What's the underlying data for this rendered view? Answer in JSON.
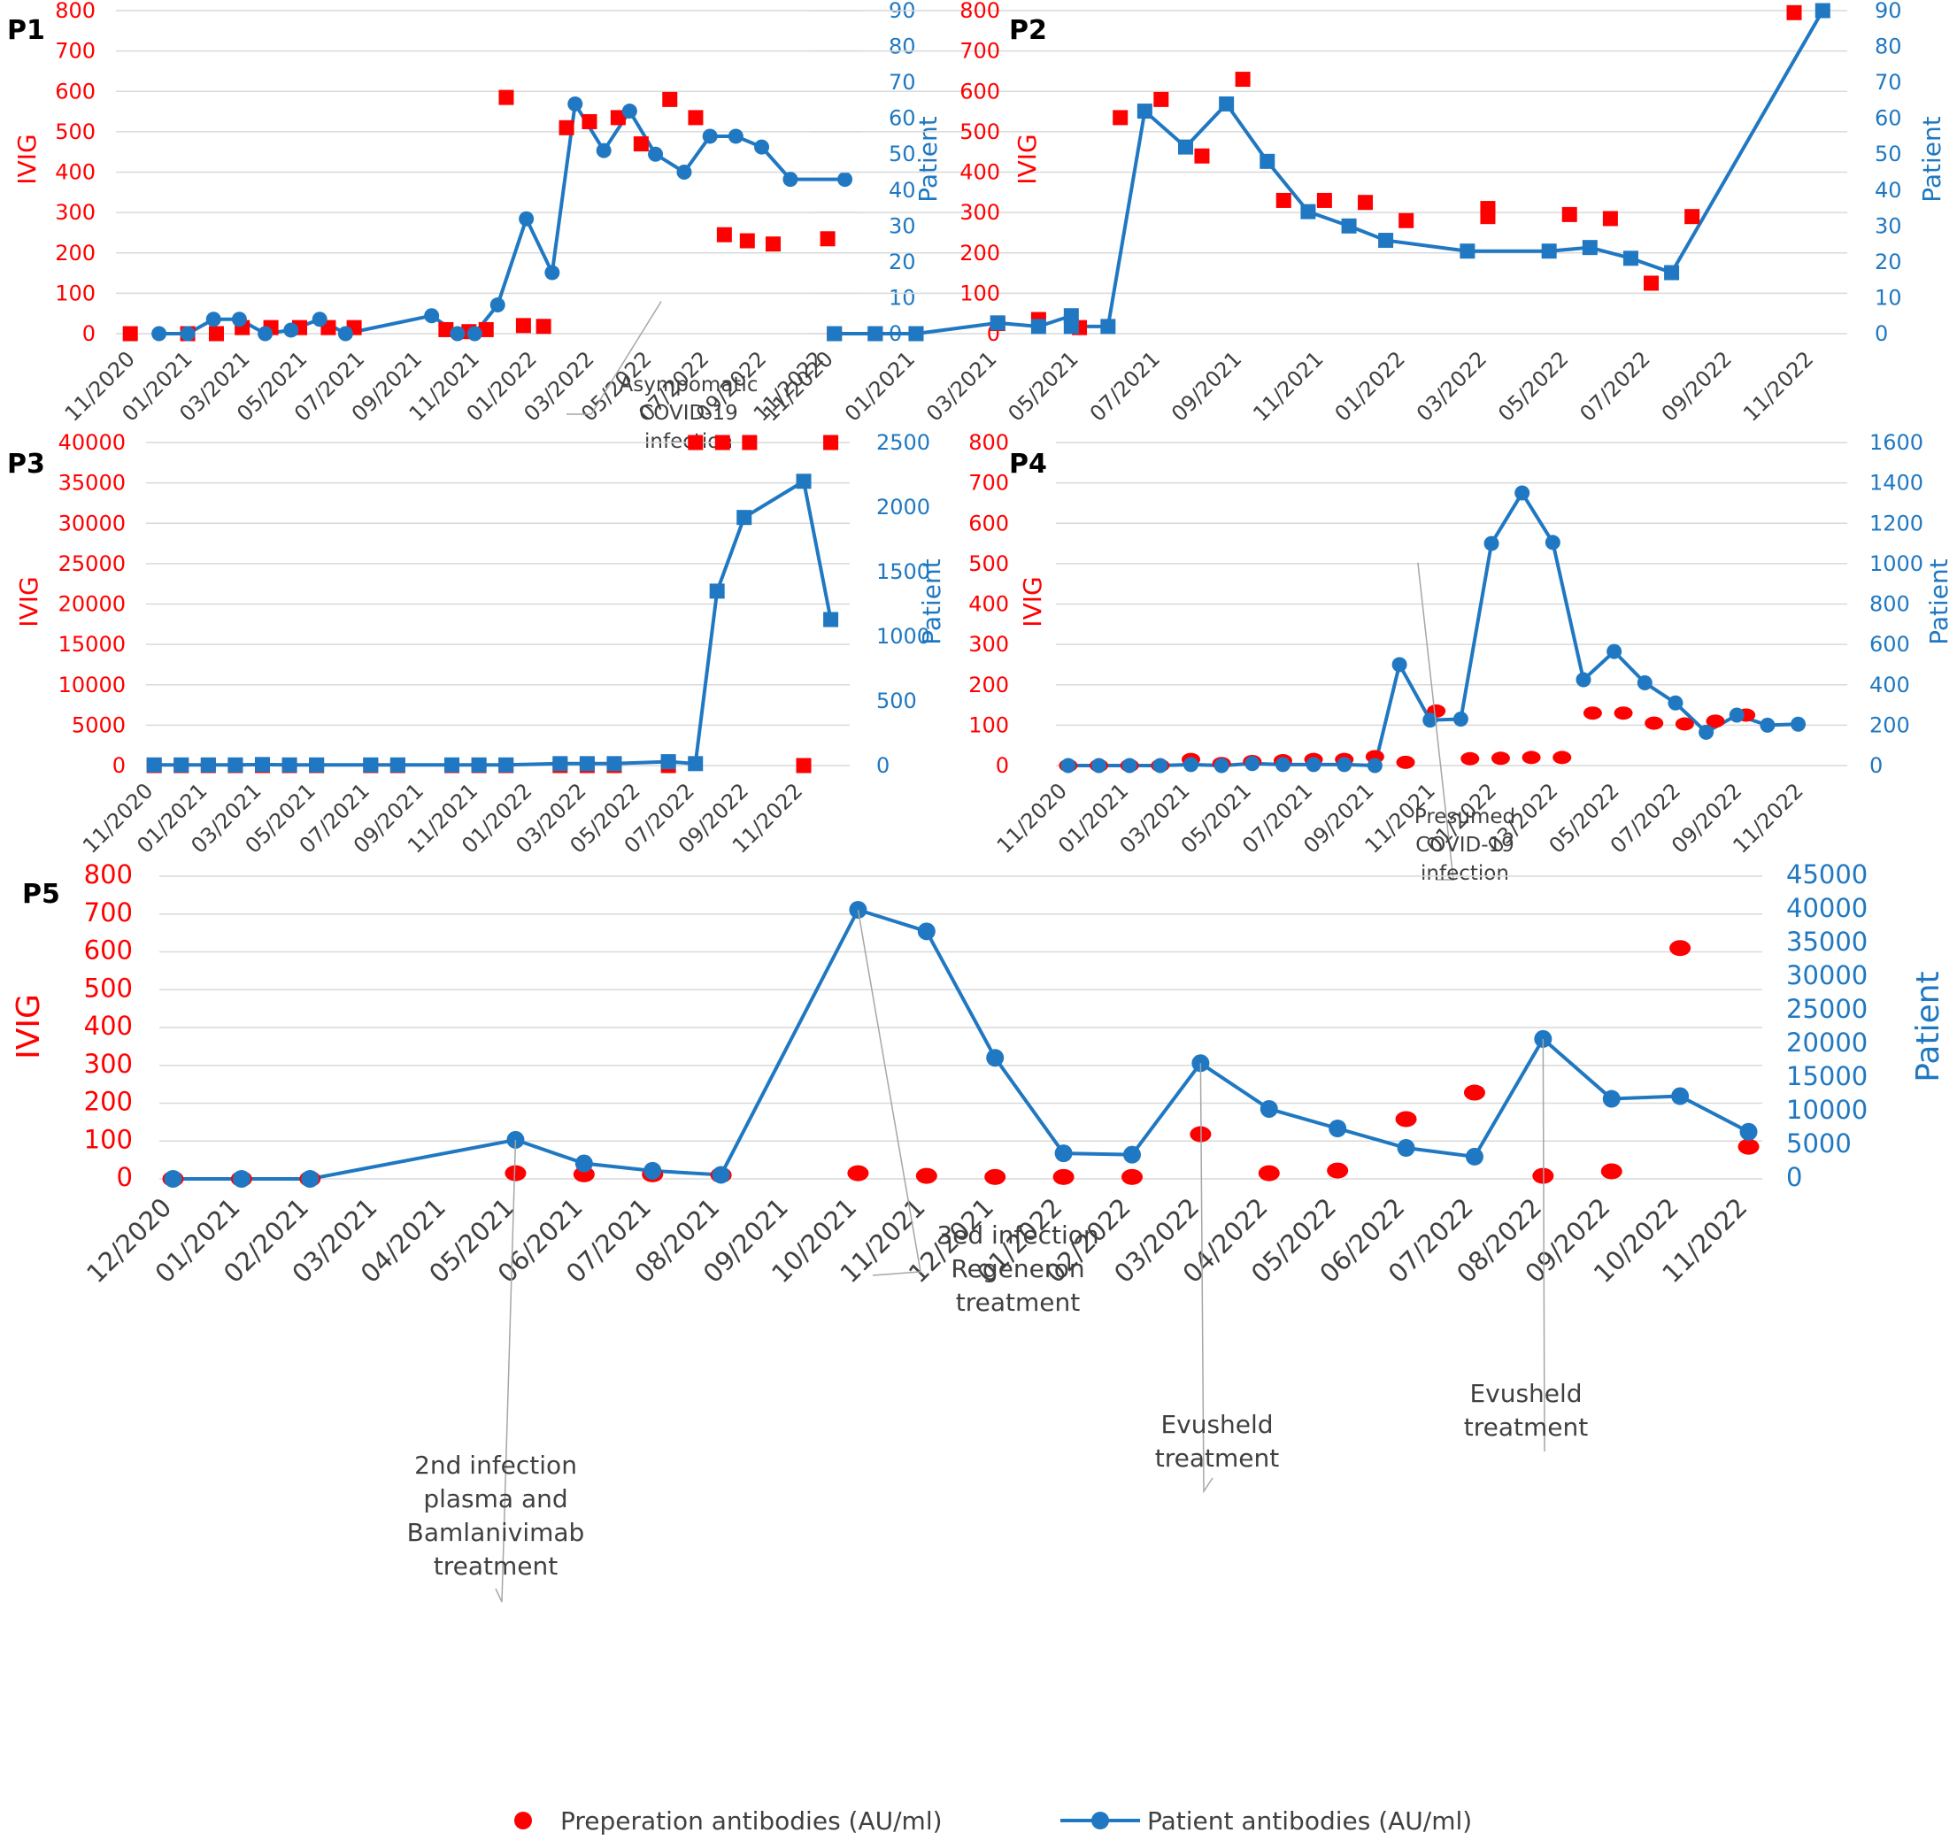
{
  "chart_data": [
    {
      "id": "P1",
      "type": "line+scatter",
      "panel_label": "P1",
      "ylabel_left": "IVIG",
      "ylabel_right": "Patient",
      "ylim_left": [
        0,
        800
      ],
      "yticks_left": [
        0,
        100,
        200,
        300,
        400,
        500,
        600,
        700,
        800
      ],
      "ylim_right": [
        0,
        90
      ],
      "yticks_right": [
        0,
        10,
        20,
        30,
        40,
        50,
        60,
        70,
        80,
        90
      ],
      "xlim": [
        -0.7,
        25.3
      ],
      "x_units": "months since 11/2020",
      "x_ticks": [
        0,
        2,
        4,
        6,
        8,
        10,
        12,
        14,
        16,
        18,
        20,
        22,
        24
      ],
      "x_tick_labels": [
        "11/2020",
        "01/2021",
        "03/2021",
        "05/2021",
        "07/2021",
        "09/2021",
        "11/2021",
        "01/2022",
        "03/2022",
        "05/2022",
        "07/2022",
        "09/2022",
        "11/2022"
      ],
      "ivig_marker": "square",
      "ivig_points": [
        [
          -0.2,
          0
        ],
        [
          1.8,
          0
        ],
        [
          2.8,
          0
        ],
        [
          3.7,
          15
        ],
        [
          4.7,
          15
        ],
        [
          5.7,
          15
        ],
        [
          6.7,
          15
        ],
        [
          7.6,
          15
        ],
        [
          10.8,
          10
        ],
        [
          11.6,
          5
        ],
        [
          12.2,
          10
        ],
        [
          12.9,
          585
        ],
        [
          13.5,
          20
        ],
        [
          14.2,
          18
        ],
        [
          15.0,
          510
        ],
        [
          15.8,
          525
        ],
        [
          16.8,
          535
        ],
        [
          17.6,
          470
        ],
        [
          18.6,
          580
        ],
        [
          19.5,
          535
        ],
        [
          20.5,
          245
        ],
        [
          21.3,
          230
        ],
        [
          22.2,
          222
        ],
        [
          24.1,
          235
        ]
      ],
      "patient_marker": "circle",
      "patient_points": [
        [
          0.8,
          0
        ],
        [
          1.8,
          0
        ],
        [
          2.7,
          4
        ],
        [
          3.6,
          4
        ],
        [
          4.5,
          0
        ],
        [
          5.4,
          1
        ],
        [
          6.4,
          4
        ],
        [
          7.3,
          0
        ],
        [
          10.3,
          5
        ],
        [
          11.2,
          0
        ],
        [
          11.8,
          0
        ],
        [
          12.6,
          8
        ],
        [
          13.6,
          32
        ],
        [
          14.5,
          17
        ],
        [
          15.3,
          64
        ],
        [
          16.3,
          51
        ],
        [
          17.2,
          62
        ],
        [
          18.1,
          50
        ],
        [
          19.1,
          45
        ],
        [
          20.0,
          55
        ],
        [
          20.9,
          55
        ],
        [
          21.8,
          52
        ],
        [
          22.8,
          43
        ],
        [
          24.7,
          43
        ]
      ],
      "annotation": {
        "lines": [
          "Asympomatic",
          "COVID-19",
          "infection"
        ],
        "x": 18.3,
        "y": 9
      }
    },
    {
      "id": "P2",
      "type": "line+scatter",
      "panel_label": "P2",
      "ylabel_left": "IVIG",
      "ylabel_right": "Patient",
      "ylim_left": [
        0,
        800
      ],
      "yticks_left": [
        0,
        100,
        200,
        300,
        400,
        500,
        600,
        700,
        800
      ],
      "ylim_right": [
        0,
        90
      ],
      "yticks_right": [
        0,
        10,
        20,
        30,
        40,
        50,
        60,
        70,
        80,
        90
      ],
      "xlim": [
        -0.6,
        24.8
      ],
      "x_units": "months since 11/2020",
      "x_ticks": [
        0,
        2,
        4,
        6,
        8,
        10,
        12,
        14,
        16,
        18,
        20,
        22,
        24
      ],
      "x_tick_labels": [
        "11/2020",
        "01/2021",
        "03/2021",
        "05/2021",
        "07/2021",
        "09/2021",
        "11/2021",
        "01/2022",
        "03/2022",
        "05/2022",
        "07/2022",
        "09/2022",
        "11/2022"
      ],
      "ivig_marker": "square",
      "ivig_points": [
        [
          0,
          0
        ],
        [
          1,
          0
        ],
        [
          2,
          0
        ],
        [
          4,
          25
        ],
        [
          5,
          35
        ],
        [
          6,
          15
        ],
        [
          7,
          535
        ],
        [
          8,
          580
        ],
        [
          9,
          440
        ],
        [
          10,
          630
        ],
        [
          11,
          330
        ],
        [
          12,
          330
        ],
        [
          13,
          325
        ],
        [
          14,
          280
        ],
        [
          16,
          310
        ],
        [
          16,
          290
        ],
        [
          18,
          295
        ],
        [
          19,
          285
        ],
        [
          20,
          125
        ],
        [
          21,
          290
        ],
        [
          23.5,
          795
        ]
      ],
      "patient_marker": "square",
      "patient_points": [
        [
          0,
          0
        ],
        [
          1,
          0
        ],
        [
          2,
          0
        ],
        [
          4,
          3
        ],
        [
          5,
          2
        ],
        [
          5.8,
          5
        ],
        [
          5.8,
          2
        ],
        [
          6.7,
          2
        ],
        [
          7.6,
          62
        ],
        [
          8.6,
          52
        ],
        [
          9.6,
          64
        ],
        [
          10.6,
          48
        ],
        [
          11.6,
          34
        ],
        [
          12.6,
          30
        ],
        [
          13.5,
          26
        ],
        [
          15.5,
          23
        ],
        [
          17.5,
          23
        ],
        [
          18.5,
          24
        ],
        [
          19.5,
          21
        ],
        [
          20.5,
          17
        ],
        [
          24.2,
          90
        ]
      ]
    },
    {
      "id": "P3",
      "type": "line+scatter",
      "panel_label": "P3",
      "ylabel_left": "IVIG",
      "ylabel_right": "Patient",
      "ylim_left": [
        0,
        40000
      ],
      "yticks_left": [
        0,
        5000,
        10000,
        15000,
        20000,
        25000,
        30000,
        35000,
        40000
      ],
      "ylim_right": [
        0,
        2500
      ],
      "yticks_right": [
        0,
        500,
        1000,
        1500,
        2000,
        2500
      ],
      "xlim": [
        -0.3,
        25.7
      ],
      "x_units": "months since 11/2020",
      "x_ticks": [
        0,
        2,
        4,
        6,
        8,
        10,
        12,
        14,
        16,
        18,
        20,
        22,
        24
      ],
      "x_tick_labels": [
        "11/2020",
        "01/2021",
        "03/2021",
        "05/2021",
        "07/2021",
        "09/2021",
        "11/2021",
        "01/2022",
        "03/2022",
        "05/2022",
        "07/2022",
        "09/2022",
        "11/2022"
      ],
      "ivig_marker": "square",
      "ivig_points": [
        [
          0,
          0
        ],
        [
          1,
          0
        ],
        [
          2,
          0
        ],
        [
          3,
          0
        ],
        [
          4,
          0
        ],
        [
          5,
          0
        ],
        [
          6,
          0
        ],
        [
          8,
          0
        ],
        [
          9,
          0
        ],
        [
          11,
          0
        ],
        [
          12,
          0
        ],
        [
          13,
          0
        ],
        [
          15,
          0
        ],
        [
          16,
          0
        ],
        [
          17,
          0
        ],
        [
          19,
          0
        ],
        [
          20,
          40000
        ],
        [
          21,
          40000
        ],
        [
          22,
          40000
        ],
        [
          24,
          0
        ],
        [
          25,
          40000
        ]
      ],
      "patient_marker": "square",
      "patient_points": [
        [
          0,
          5
        ],
        [
          1,
          5
        ],
        [
          2,
          5
        ],
        [
          3,
          5
        ],
        [
          4,
          8
        ],
        [
          5,
          5
        ],
        [
          6,
          5
        ],
        [
          8,
          5
        ],
        [
          9,
          5
        ],
        [
          11,
          5
        ],
        [
          12,
          5
        ],
        [
          13,
          5
        ],
        [
          15,
          15
        ],
        [
          16,
          15
        ],
        [
          17,
          15
        ],
        [
          19,
          30
        ],
        [
          20,
          15
        ],
        [
          20.8,
          1350
        ],
        [
          21.8,
          1920
        ],
        [
          24,
          2200
        ],
        [
          25,
          1130
        ]
      ]
    },
    {
      "id": "P4",
      "type": "line+scatter",
      "panel_label": "P4",
      "ylabel_left": "IVIG",
      "ylabel_right": "Patient",
      "ylim_left": [
        0,
        800
      ],
      "yticks_left": [
        0,
        100,
        200,
        300,
        400,
        500,
        600,
        700,
        800
      ],
      "ylim_right": [
        0,
        1600
      ],
      "yticks_right": [
        0,
        200,
        400,
        600,
        800,
        1000,
        1200,
        1400,
        1600
      ],
      "xlim": [
        -0.4,
        25.4
      ],
      "x_units": "months since 11/2020",
      "x_ticks": [
        0,
        2,
        4,
        6,
        8,
        10,
        12,
        14,
        16,
        18,
        20,
        22,
        24
      ],
      "x_tick_labels": [
        "11/2020",
        "01/2021",
        "03/2021",
        "05/2021",
        "07/2021",
        "09/2021",
        "11/2021",
        "01/2022",
        "03/2022",
        "05/2022",
        "07/2022",
        "09/2022",
        "11/2022"
      ],
      "ivig_marker": "circle",
      "ivig_points": [
        [
          0,
          0
        ],
        [
          1,
          0
        ],
        [
          2,
          0
        ],
        [
          3,
          0
        ],
        [
          4,
          15
        ],
        [
          5,
          5
        ],
        [
          6,
          10
        ],
        [
          7,
          12
        ],
        [
          8,
          15
        ],
        [
          9,
          15
        ],
        [
          10,
          22
        ],
        [
          11,
          8
        ],
        [
          12,
          135
        ],
        [
          13.1,
          17
        ],
        [
          14.1,
          18
        ],
        [
          15.1,
          20
        ],
        [
          16.1,
          20
        ],
        [
          17.1,
          130
        ],
        [
          18.1,
          130
        ],
        [
          19.1,
          105
        ],
        [
          20.1,
          103
        ],
        [
          21.1,
          110
        ],
        [
          22.1,
          125
        ]
      ],
      "patient_marker": "circle",
      "patient_points": [
        [
          0,
          0
        ],
        [
          1,
          0
        ],
        [
          2,
          0
        ],
        [
          3,
          0
        ],
        [
          4,
          5
        ],
        [
          5,
          0
        ],
        [
          6,
          10
        ],
        [
          7,
          5
        ],
        [
          8,
          5
        ],
        [
          9,
          5
        ],
        [
          10,
          0
        ],
        [
          10.8,
          500
        ],
        [
          11.8,
          225
        ],
        [
          12.8,
          230
        ],
        [
          13.8,
          1100
        ],
        [
          14.8,
          1350
        ],
        [
          15.8,
          1105
        ],
        [
          16.8,
          425
        ],
        [
          17.8,
          565
        ],
        [
          18.8,
          410
        ],
        [
          19.8,
          310
        ],
        [
          20.8,
          165
        ],
        [
          21.8,
          250
        ],
        [
          22.8,
          200
        ],
        [
          23.8,
          205
        ]
      ],
      "annotation": {
        "lines": [
          "Presumed",
          "COVID-19",
          "infection"
        ],
        "x": 11.4,
        "y": 1005
      }
    },
    {
      "id": "P5",
      "type": "line+scatter",
      "panel_label": "P5",
      "ylabel_left": "IVIG",
      "ylabel_right": "Patient",
      "ylim_left": [
        0,
        800
      ],
      "yticks_left": [
        0,
        100,
        200,
        300,
        400,
        500,
        600,
        700,
        800
      ],
      "ylim_right": [
        0,
        45000
      ],
      "yticks_right": [
        0,
        5000,
        10000,
        15000,
        20000,
        25000,
        30000,
        35000,
        40000,
        45000
      ],
      "xlim": [
        -0.2,
        23.2
      ],
      "x_units": "months since 12/2020",
      "x_ticks": [
        0,
        1,
        2,
        3,
        4,
        5,
        6,
        7,
        8,
        9,
        10,
        11,
        12,
        13,
        14,
        15,
        16,
        17,
        18,
        19,
        20,
        21,
        22,
        23
      ],
      "x_tick_labels": [
        "12/2020",
        "01/2021",
        "02/2021",
        "03/2021",
        "04/2021",
        "05/2021",
        "06/2021",
        "07/2021",
        "08/2021",
        "09/2021",
        "10/2021",
        "11/2021",
        "12/2021",
        "01/2022",
        "02/2022",
        "03/2022",
        "04/2022",
        "05/2022",
        "06/2022",
        "07/2022",
        "08/2022",
        "09/2022",
        "10/2022",
        "11/2022"
      ],
      "ivig_marker": "circle",
      "ivig_points": [
        [
          0,
          0
        ],
        [
          1,
          0
        ],
        [
          2,
          0
        ],
        [
          5,
          15
        ],
        [
          6,
          12
        ],
        [
          7,
          12
        ],
        [
          8,
          10
        ],
        [
          10,
          15
        ],
        [
          11,
          8
        ],
        [
          12,
          5
        ],
        [
          13,
          5
        ],
        [
          14,
          5
        ],
        [
          15,
          118
        ],
        [
          16,
          15
        ],
        [
          17,
          22
        ],
        [
          18,
          158
        ],
        [
          19,
          228
        ],
        [
          20,
          8
        ],
        [
          21,
          20
        ],
        [
          22,
          610
        ],
        [
          23,
          85
        ]
      ],
      "patient_marker": "circle",
      "patient_points": [
        [
          0,
          0
        ],
        [
          1,
          0
        ],
        [
          2,
          0
        ],
        [
          5,
          5800
        ],
        [
          6,
          2300
        ],
        [
          7,
          1200
        ],
        [
          8,
          600
        ],
        [
          10,
          40000
        ],
        [
          11,
          36800
        ],
        [
          12,
          18000
        ],
        [
          13,
          3800
        ],
        [
          14,
          3600
        ],
        [
          15,
          17200
        ],
        [
          16,
          10400
        ],
        [
          17,
          7500
        ],
        [
          18,
          4600
        ],
        [
          19,
          3300
        ],
        [
          20,
          20800
        ],
        [
          21,
          11900
        ],
        [
          22,
          12300
        ],
        [
          23,
          7000
        ]
      ],
      "annotations": [
        {
          "lines": [
            "2nd infection",
            "plasma and",
            "Bamlanivimab",
            "treatment"
          ],
          "x": 5,
          "y": 5800
        },
        {
          "lines": [
            "3ed infection",
            "Regeneron",
            "treatment"
          ],
          "x": 10,
          "y": 40000
        },
        {
          "lines": [
            "Evusheld",
            "treatment"
          ],
          "x": 15,
          "y": 17200
        },
        {
          "lines": [
            "Evusheld",
            "treatment"
          ],
          "x": 20,
          "y": 20800
        }
      ]
    }
  ],
  "legend": {
    "ivig_label": "Preperation antibodies (AU/ml)",
    "patient_label": "Patient antibodies (AU/ml)"
  },
  "colors": {
    "ivig": "#ff0000",
    "patient": "#1f78c1",
    "grid": "#d9d9d9",
    "text": "#404040"
  }
}
